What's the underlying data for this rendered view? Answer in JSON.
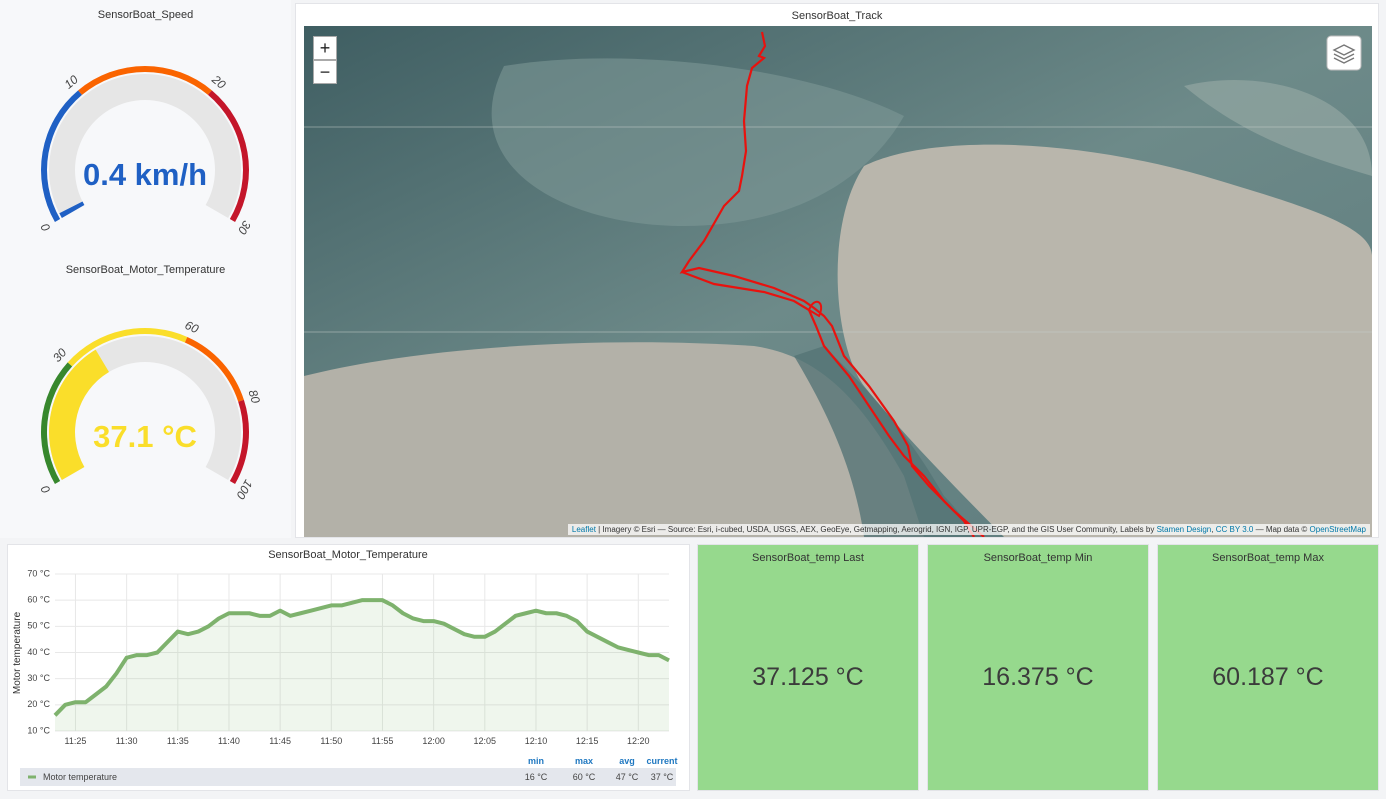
{
  "speed_gauge": {
    "title": "SensorBoat_Speed",
    "value": 0.4,
    "value_label": "0.4 km/h",
    "ticks": [
      0,
      10,
      20,
      30
    ],
    "band_colors": [
      "#1f60c4",
      "#fa6400",
      "#c4162a"
    ]
  },
  "temp_gauge": {
    "title": "SensorBoat_Motor_Temperature",
    "value": 37.1,
    "value_label": "37.1 °C",
    "ticks": [
      0,
      30,
      60,
      80,
      100
    ],
    "band_colors": [
      "#37872d",
      "#fade2a",
      "#fa6400",
      "#c4162a"
    ]
  },
  "map": {
    "title": "SensorBoat_Track",
    "zoom_in": "+",
    "zoom_out": "−",
    "attribution": [
      {
        "text": "Leaflet",
        "link": true
      },
      {
        "text": " | Imagery © Esri — Source: Esri, i-cubed, USDA, USGS, AEX, GeoEye, Getmapping, Aerogrid, IGN, IGP, UPR-EGP, and the GIS User Community, Labels by ",
        "link": false
      },
      {
        "text": "Stamen Design",
        "link": true
      },
      {
        "text": ", ",
        "link": false
      },
      {
        "text": "CC BY 3.0",
        "link": true
      },
      {
        "text": " — Map data © ",
        "link": false
      },
      {
        "text": "OpenStreetMap",
        "link": true
      }
    ]
  },
  "chart_data": {
    "type": "line",
    "title": "SensorBoat_Motor_Temperature",
    "y_label": "Motor temperature",
    "x": [
      "11:23",
      "11:24",
      "11:25",
      "11:26",
      "11:27",
      "11:28",
      "11:29",
      "11:30",
      "11:31",
      "11:32",
      "11:33",
      "11:34",
      "11:35",
      "11:36",
      "11:37",
      "11:38",
      "11:39",
      "11:40",
      "11:41",
      "11:42",
      "11:43",
      "11:44",
      "11:45",
      "11:46",
      "11:47",
      "11:48",
      "11:49",
      "11:50",
      "11:51",
      "11:52",
      "11:53",
      "11:54",
      "11:55",
      "11:56",
      "11:57",
      "11:58",
      "11:59",
      "12:00",
      "12:01",
      "12:02",
      "12:03",
      "12:04",
      "12:05",
      "12:06",
      "12:07",
      "12:08",
      "12:09",
      "12:10",
      "12:11",
      "12:12",
      "12:13",
      "12:14",
      "12:15",
      "12:16",
      "12:17",
      "12:18",
      "12:19",
      "12:20",
      "12:21",
      "12:22",
      "12:23"
    ],
    "series": [
      {
        "name": "Motor temperature",
        "color": "#7eb26d",
        "values": [
          16,
          20,
          21,
          21,
          24,
          27,
          32,
          38,
          39,
          39,
          40,
          44,
          48,
          47,
          48,
          50,
          53,
          55,
          55,
          55,
          54,
          54,
          56,
          54,
          55,
          56,
          57,
          58,
          58,
          59,
          60,
          60,
          60,
          58,
          55,
          53,
          52,
          52,
          51,
          49,
          47,
          46,
          46,
          48,
          51,
          54,
          55,
          56,
          55,
          55,
          54,
          52,
          48,
          46,
          44,
          42,
          41,
          40,
          39,
          39,
          37
        ]
      }
    ],
    "xlim": [
      "11:23",
      "12:23"
    ],
    "xticks": [
      "11:25",
      "11:30",
      "11:35",
      "11:40",
      "11:45",
      "11:50",
      "11:55",
      "12:00",
      "12:05",
      "12:10",
      "12:15",
      "12:20"
    ],
    "ylim": [
      10,
      70
    ],
    "yticks": [
      {
        "value": 10,
        "label": "10 °C"
      },
      {
        "value": 20,
        "label": "20 °C"
      },
      {
        "value": 30,
        "label": "30 °C"
      },
      {
        "value": 40,
        "label": "40 °C"
      },
      {
        "value": 50,
        "label": "50 °C"
      },
      {
        "value": 60,
        "label": "60 °C"
      },
      {
        "value": 70,
        "label": "70 °C"
      }
    ],
    "grid": true,
    "legend_stats": {
      "headers": [
        "min",
        "max",
        "avg",
        "current"
      ],
      "values": [
        "16 °C",
        "60 °C",
        "47 °C",
        "37 °C"
      ]
    }
  },
  "stats": [
    {
      "title": "SensorBoat_temp Last",
      "value": "37.125 °C"
    },
    {
      "title": "SensorBoat_temp Min",
      "value": "16.375 °C"
    },
    {
      "title": "SensorBoat_temp Max",
      "value": "60.187 °C"
    }
  ]
}
